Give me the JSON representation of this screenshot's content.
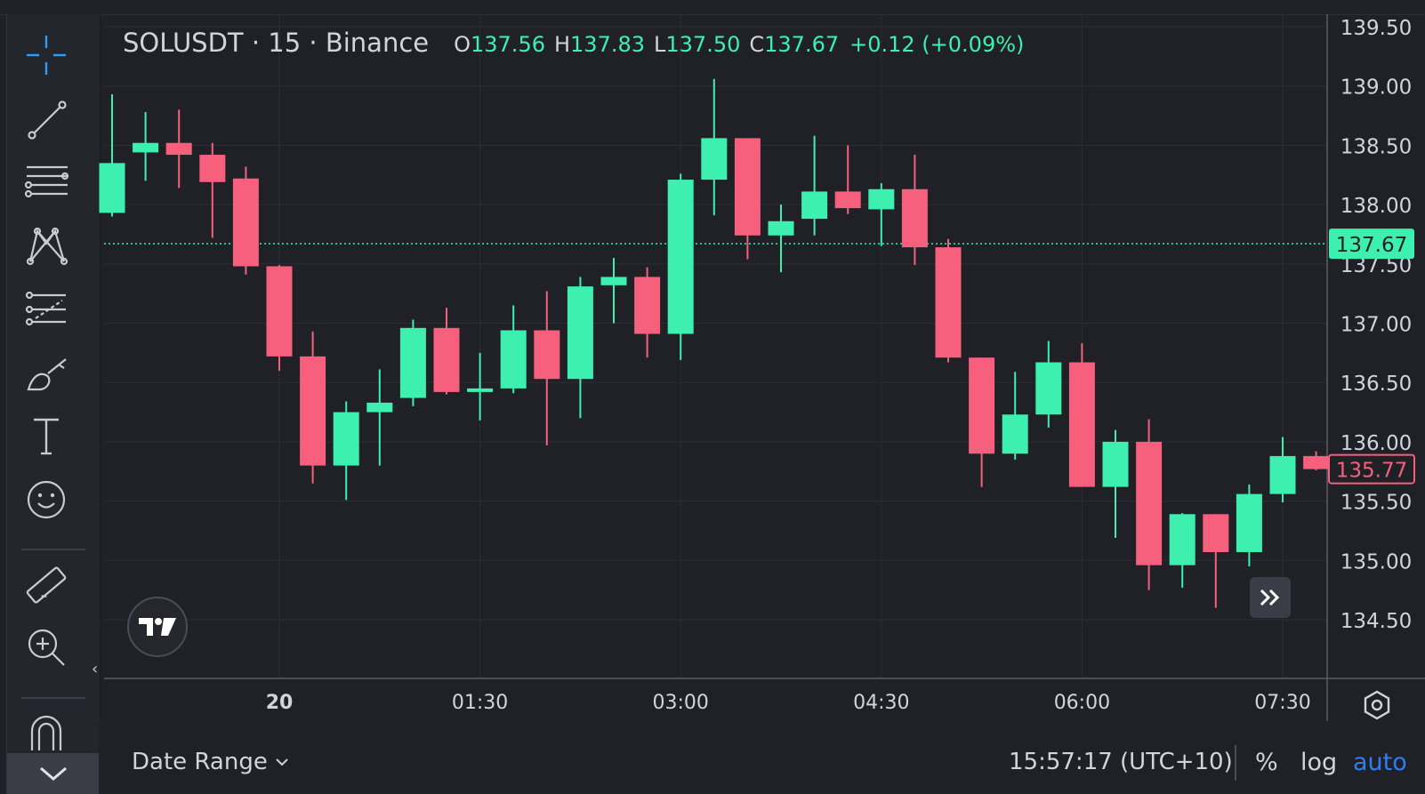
{
  "legend": {
    "symbol": "SOLUSDT · 15 · Binance",
    "o_label": "O",
    "o_value": "137.56",
    "h_label": "H",
    "h_value": "137.83",
    "l_label": "L",
    "l_value": "137.50",
    "c_label": "C",
    "c_value": "137.67",
    "change": "+0.12 (+0.09%)"
  },
  "colors": {
    "up": "#3ef0b0",
    "down": "#f6607d",
    "background": "#1f2127",
    "grid": "#2b2e36",
    "accent": "#2f7df6",
    "last_price_line": "#3ef0b0"
  },
  "toolbar": {
    "icons": [
      "crosshair-icon",
      "trend-line-icon",
      "fib-retracement-icon",
      "pattern-icon",
      "prediction-icon",
      "brush-icon",
      "text-icon",
      "emoji-icon",
      "ruler-icon",
      "zoom-in-icon",
      "magnet-icon"
    ]
  },
  "bottom_bar": {
    "date_range": "Date Range",
    "clock": "15:57:17 (UTC+10)",
    "percent": "%",
    "log": "log",
    "auto": "auto"
  },
  "chart_data": {
    "type": "candlestick",
    "interval_minutes": 15,
    "ylim": [
      134.2,
      139.6
    ],
    "y_ticks": [
      139.5,
      139.0,
      138.5,
      138.0,
      137.5,
      137.0,
      136.5,
      136.0,
      135.5,
      135.0,
      134.5
    ],
    "y_tick_labels": [
      "139.50",
      "139.00",
      "138.50",
      "138.00",
      "137.50",
      "137.00",
      "136.50",
      "136.00",
      "135.50",
      "135.00",
      "134.50"
    ],
    "x_tick_labels": [
      "20",
      "01:30",
      "03:00",
      "04:30",
      "06:00",
      "07:30"
    ],
    "x_tick_candle_index": [
      5,
      11,
      17,
      23,
      29,
      35
    ],
    "last_price": 137.67,
    "last_price_label": "137.67",
    "current_price": 135.77,
    "current_price_label": "135.77",
    "grid": true,
    "candles": [
      {
        "o": 137.93,
        "h": 138.93,
        "l": 137.9,
        "c": 138.35
      },
      {
        "o": 138.44,
        "h": 138.78,
        "l": 138.2,
        "c": 138.52
      },
      {
        "o": 138.52,
        "h": 138.8,
        "l": 138.14,
        "c": 138.42
      },
      {
        "o": 138.42,
        "h": 138.52,
        "l": 137.72,
        "c": 138.19
      },
      {
        "o": 138.22,
        "h": 138.32,
        "l": 137.41,
        "c": 137.48
      },
      {
        "o": 137.48,
        "h": 137.49,
        "l": 136.6,
        "c": 136.72
      },
      {
        "o": 136.72,
        "h": 136.93,
        "l": 135.65,
        "c": 135.8
      },
      {
        "o": 135.8,
        "h": 136.34,
        "l": 135.51,
        "c": 136.25
      },
      {
        "o": 136.25,
        "h": 136.61,
        "l": 135.8,
        "c": 136.33
      },
      {
        "o": 136.37,
        "h": 137.03,
        "l": 136.3,
        "c": 136.96
      },
      {
        "o": 136.96,
        "h": 137.13,
        "l": 136.4,
        "c": 136.42
      },
      {
        "o": 136.42,
        "h": 136.75,
        "l": 136.18,
        "c": 136.45
      },
      {
        "o": 136.45,
        "h": 137.15,
        "l": 136.41,
        "c": 136.94
      },
      {
        "o": 136.94,
        "h": 137.27,
        "l": 135.97,
        "c": 136.53
      },
      {
        "o": 136.53,
        "h": 137.39,
        "l": 136.2,
        "c": 137.31
      },
      {
        "o": 137.32,
        "h": 137.55,
        "l": 137.0,
        "c": 137.39
      },
      {
        "o": 137.39,
        "h": 137.47,
        "l": 136.71,
        "c": 136.91
      },
      {
        "o": 136.91,
        "h": 138.26,
        "l": 136.69,
        "c": 138.21
      },
      {
        "o": 138.21,
        "h": 139.06,
        "l": 137.91,
        "c": 138.56
      },
      {
        "o": 138.56,
        "h": 138.56,
        "l": 137.54,
        "c": 137.74
      },
      {
        "o": 137.74,
        "h": 138.0,
        "l": 137.43,
        "c": 137.86
      },
      {
        "o": 137.88,
        "h": 138.58,
        "l": 137.74,
        "c": 138.11
      },
      {
        "o": 138.11,
        "h": 138.5,
        "l": 137.92,
        "c": 137.97
      },
      {
        "o": 137.96,
        "h": 138.18,
        "l": 137.65,
        "c": 138.13
      },
      {
        "o": 138.13,
        "h": 138.42,
        "l": 137.49,
        "c": 137.64
      },
      {
        "o": 137.64,
        "h": 137.71,
        "l": 136.67,
        "c": 136.71
      },
      {
        "o": 136.71,
        "h": 136.71,
        "l": 135.62,
        "c": 135.9
      },
      {
        "o": 135.9,
        "h": 136.59,
        "l": 135.85,
        "c": 136.23
      },
      {
        "o": 136.23,
        "h": 136.85,
        "l": 136.12,
        "c": 136.67
      },
      {
        "o": 136.67,
        "h": 136.83,
        "l": 135.62,
        "c": 135.62
      },
      {
        "o": 135.62,
        "h": 136.1,
        "l": 135.19,
        "c": 136.0
      },
      {
        "o": 136.0,
        "h": 136.19,
        "l": 134.75,
        "c": 134.96
      },
      {
        "o": 134.96,
        "h": 135.4,
        "l": 134.77,
        "c": 135.39
      },
      {
        "o": 135.39,
        "h": 135.39,
        "l": 134.6,
        "c": 135.07
      },
      {
        "o": 135.07,
        "h": 135.64,
        "l": 134.95,
        "c": 135.56
      },
      {
        "o": 135.56,
        "h": 136.04,
        "l": 135.49,
        "c": 135.88
      },
      {
        "o": 135.88,
        "h": 135.92,
        "l": 135.76,
        "c": 135.77
      }
    ]
  }
}
